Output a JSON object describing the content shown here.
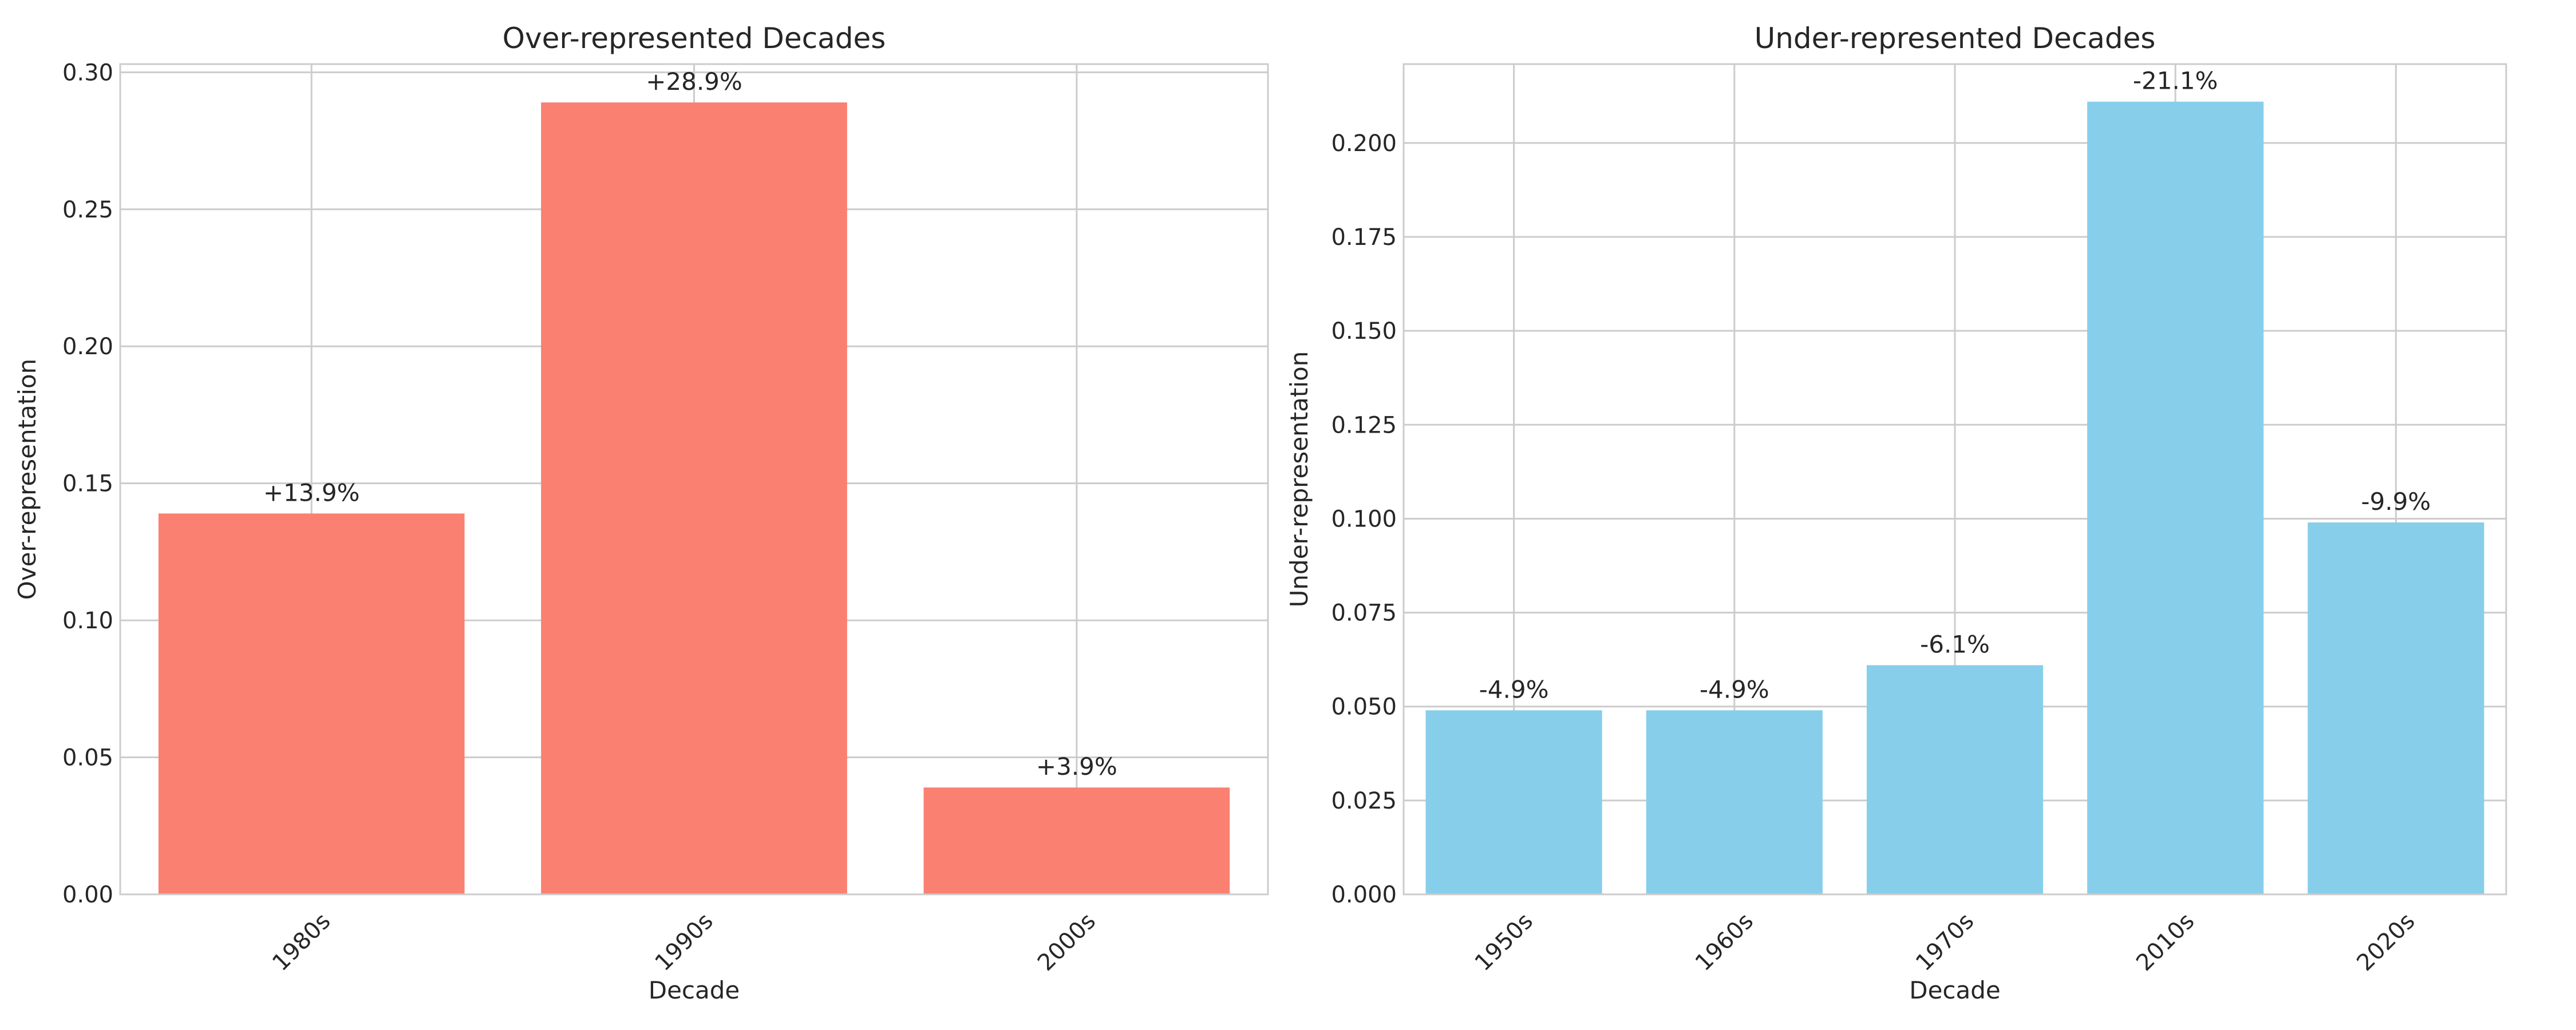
{
  "chart_data": [
    {
      "type": "bar",
      "title": "Over-represented Decades",
      "xlabel": "Decade",
      "ylabel": "Over-representation",
      "categories": [
        "1980s",
        "1990s",
        "2000s"
      ],
      "values": [
        0.139,
        0.289,
        0.039
      ],
      "bar_labels": [
        "+13.9%",
        "+28.9%",
        "+3.9%"
      ],
      "ylim": [
        0,
        0.303
      ],
      "yticks": [
        0.0,
        0.05,
        0.1,
        0.15,
        0.2,
        0.25,
        0.3
      ],
      "ytick_labels": [
        "0.00",
        "0.05",
        "0.10",
        "0.15",
        "0.20",
        "0.25",
        "0.30"
      ],
      "color": "#fa8072",
      "grid": true
    },
    {
      "type": "bar",
      "title": "Under-represented Decades",
      "xlabel": "Decade",
      "ylabel": "Under-representation",
      "categories": [
        "1950s",
        "1960s",
        "1970s",
        "2010s",
        "2020s"
      ],
      "values": [
        0.049,
        0.049,
        0.061,
        0.211,
        0.099
      ],
      "bar_labels": [
        "-4.9%",
        "-4.9%",
        "-6.1%",
        "-21.1%",
        "-9.9%"
      ],
      "ylim": [
        0,
        0.221
      ],
      "yticks": [
        0.0,
        0.025,
        0.05,
        0.075,
        0.1,
        0.125,
        0.15,
        0.175,
        0.2
      ],
      "ytick_labels": [
        "0.000",
        "0.025",
        "0.050",
        "0.075",
        "0.100",
        "0.125",
        "0.150",
        "0.175",
        "0.200"
      ],
      "color": "#87ceeb",
      "grid": true
    }
  ]
}
